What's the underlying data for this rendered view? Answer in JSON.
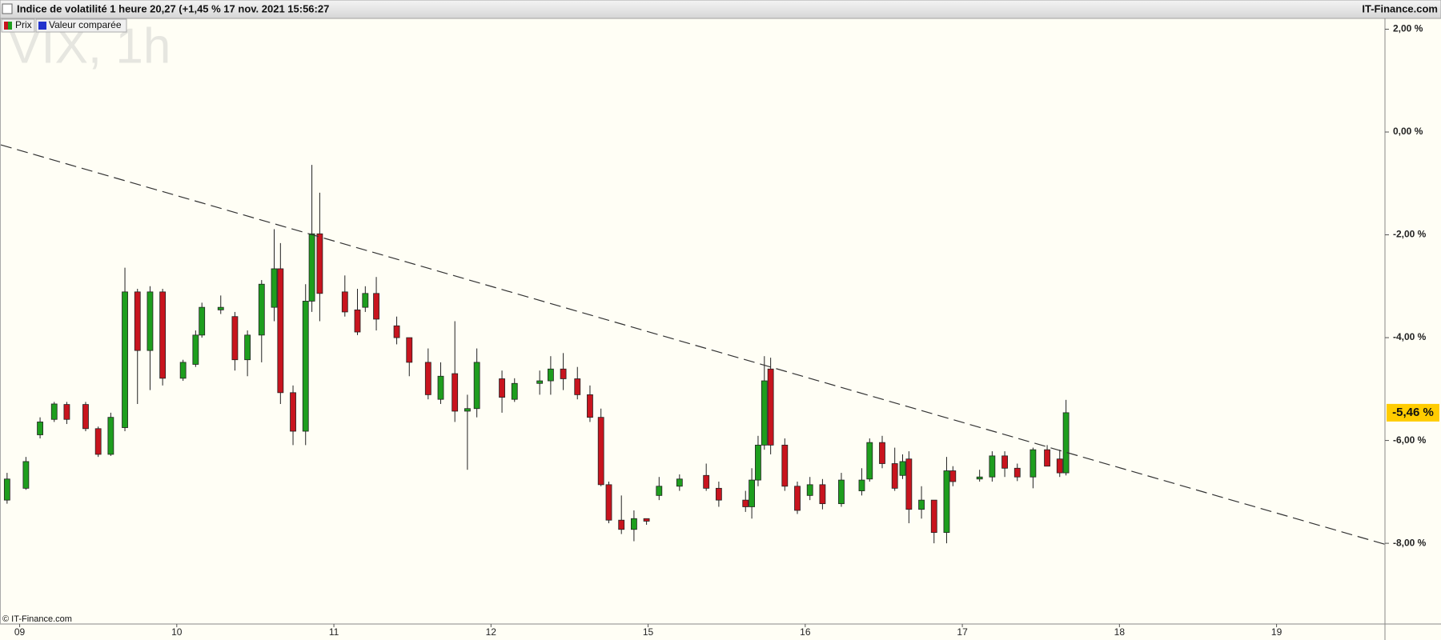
{
  "chart_data": {
    "type": "candlestick",
    "title": "Indice de volatilité 1 heure 20,27 (+1,45 % 17 nov. 2021 15:56:27",
    "source": "IT-Finance.com",
    "watermark": "VIX, 1h",
    "copyright": "© IT-Finance.com",
    "legend": [
      {
        "name": "Prix"
      },
      {
        "name": "Valeur comparée"
      }
    ],
    "colors": {
      "up": "#1e9e1e",
      "down": "#c8141e",
      "outline": "#222222",
      "trendline": "#333333",
      "badge": "#ffcc00"
    },
    "xlim": [
      -0.12,
      8.69
    ],
    "ylim": [
      -9.57,
      2.21
    ],
    "xticks": [
      {
        "value": 0,
        "label": "09"
      },
      {
        "value": 1,
        "label": "10"
      },
      {
        "value": 2,
        "label": "11"
      },
      {
        "value": 3,
        "label": "12"
      },
      {
        "value": 4,
        "label": "15"
      },
      {
        "value": 5,
        "label": "16"
      },
      {
        "value": 6,
        "label": "17"
      },
      {
        "value": 7,
        "label": "18"
      },
      {
        "value": 8,
        "label": "19"
      }
    ],
    "yticks": [
      {
        "value": 2,
        "label": "2,00 %"
      },
      {
        "value": 0,
        "label": "0,00 %"
      },
      {
        "value": -2,
        "label": "-2,00 %"
      },
      {
        "value": -4,
        "label": "-4,00 %"
      },
      {
        "value": -6,
        "label": "-6,00 %"
      },
      {
        "value": -8,
        "label": "-8,00 %"
      }
    ],
    "last_price": {
      "value": -5.46,
      "label": "-5,46 %"
    },
    "trendline": {
      "x": [
        -0.12,
        8.69
      ],
      "y": [
        -0.25,
        -8.02
      ]
    },
    "x": [
      -0.08,
      0.04,
      0.13,
      0.22,
      0.3,
      0.42,
      0.5,
      0.58,
      0.67,
      0.75,
      0.83,
      0.91,
      1.04,
      1.12,
      1.16,
      1.28,
      1.37,
      1.45,
      1.54,
      1.62,
      1.66,
      1.74,
      1.82,
      1.86,
      1.91,
      2.07,
      2.15,
      2.2,
      2.27,
      2.4,
      2.48,
      2.6,
      2.68,
      2.77,
      2.85,
      2.91,
      3.07,
      3.15,
      3.31,
      3.38,
      3.46,
      3.55,
      3.63,
      3.7,
      3.75,
      3.83,
      3.91,
      3.99,
      4.07,
      4.2,
      4.37,
      4.45,
      4.62,
      4.66,
      4.7,
      4.74,
      4.78,
      4.87,
      4.95,
      5.03,
      5.11,
      5.23,
      5.36,
      5.41,
      5.49,
      5.57,
      5.62,
      5.66,
      5.74,
      5.82,
      5.9,
      5.94,
      6.11,
      6.19,
      6.27,
      6.35,
      6.45,
      6.54,
      6.62,
      6.66
    ],
    "open": [
      -7.16,
      -6.93,
      -5.89,
      -5.59,
      -5.3,
      -5.3,
      -5.77,
      -6.27,
      -5.75,
      -3.11,
      -4.25,
      -3.11,
      -4.79,
      -4.52,
      -3.95,
      -3.46,
      -3.59,
      -4.43,
      -3.95,
      -3.41,
      -2.66,
      -5.07,
      -5.82,
      -3.29,
      -1.98,
      -3.11,
      -3.46,
      -3.41,
      -3.14,
      -3.77,
      -4.0,
      -4.48,
      -5.2,
      -4.7,
      -5.43,
      -5.38,
      -4.8,
      -5.2,
      -4.89,
      -4.84,
      -4.61,
      -4.8,
      -5.11,
      -5.55,
      -6.86,
      -7.55,
      -7.73,
      -7.52,
      -7.07,
      -6.89,
      -6.68,
      -6.93,
      -7.16,
      -7.29,
      -6.77,
      -6.09,
      -4.61,
      -6.09,
      -6.89,
      -7.07,
      -6.86,
      -7.23,
      -6.98,
      -6.75,
      -6.04,
      -6.45,
      -6.68,
      -6.36,
      -7.34,
      -7.16,
      -7.79,
      -6.59,
      -6.75,
      -6.71,
      -6.3,
      -6.54,
      -6.71,
      -6.18,
      -6.36,
      -6.63
    ],
    "high": [
      -6.63,
      -6.32,
      -5.55,
      -5.25,
      -5.25,
      -5.25,
      -5.73,
      -5.46,
      -2.64,
      -3.05,
      -3.0,
      -3.05,
      -4.43,
      -3.86,
      -3.32,
      -3.18,
      -3.5,
      -3.86,
      -2.88,
      -1.89,
      -2.16,
      -4.93,
      -2.96,
      -0.64,
      -1.18,
      -2.79,
      -3.05,
      -3.0,
      -2.82,
      -3.59,
      -4.0,
      -4.21,
      -4.48,
      -3.68,
      -5.11,
      -4.21,
      -4.64,
      -4.79,
      -4.64,
      -4.36,
      -4.3,
      -4.57,
      -4.93,
      -5.38,
      -6.8,
      -7.07,
      -7.36,
      -7.52,
      -6.71,
      -6.66,
      -6.45,
      -6.8,
      -6.98,
      -6.54,
      -5.91,
      -4.36,
      -4.39,
      -5.96,
      -6.8,
      -6.71,
      -6.75,
      -6.63,
      -6.54,
      -5.96,
      -5.91,
      -6.14,
      -6.27,
      -6.21,
      -6.89,
      -7.21,
      -6.32,
      -6.5,
      -6.57,
      -6.21,
      -6.21,
      -6.45,
      -6.14,
      -6.09,
      -6.18,
      -5.21
    ],
    "low": [
      -7.23,
      -6.96,
      -5.96,
      -5.64,
      -5.68,
      -5.82,
      -6.32,
      -6.3,
      -5.82,
      -5.29,
      -5.02,
      -4.93,
      -4.84,
      -4.57,
      -4.0,
      -3.54,
      -4.64,
      -4.75,
      -4.48,
      -3.68,
      -5.29,
      -6.09,
      -6.09,
      -3.5,
      -3.68,
      -3.59,
      -3.95,
      -3.5,
      -3.86,
      -4.13,
      -4.75,
      -5.2,
      -5.29,
      -5.64,
      -6.57,
      -5.55,
      -5.46,
      -5.25,
      -5.11,
      -5.11,
      -5.02,
      -5.2,
      -5.64,
      -6.89,
      -7.61,
      -7.82,
      -7.96,
      -7.64,
      -7.16,
      -6.98,
      -6.98,
      -7.29,
      -7.39,
      -7.52,
      -6.89,
      -6.18,
      -6.27,
      -6.98,
      -7.43,
      -7.16,
      -7.34,
      -7.29,
      -7.07,
      -6.8,
      -6.54,
      -6.98,
      -6.75,
      -7.61,
      -7.52,
      -8.0,
      -8.0,
      -6.89,
      -6.8,
      -6.8,
      -6.71,
      -6.79,
      -6.93,
      -6.45,
      -6.71,
      -6.68
    ],
    "close": [
      -6.75,
      -6.41,
      -5.64,
      -5.29,
      -5.59,
      -5.77,
      -6.27,
      -5.55,
      -3.11,
      -4.25,
      -3.11,
      -4.79,
      -4.48,
      -3.95,
      -3.41,
      -3.41,
      -4.43,
      -3.95,
      -2.96,
      -2.66,
      -5.07,
      -5.82,
      -3.29,
      -1.98,
      -3.14,
      -3.5,
      -3.89,
      -3.14,
      -3.64,
      -4.0,
      -4.48,
      -5.11,
      -4.75,
      -5.43,
      -5.38,
      -4.48,
      -5.16,
      -4.89,
      -4.84,
      -4.61,
      -4.8,
      -5.11,
      -5.55,
      -6.86,
      -7.55,
      -7.73,
      -7.52,
      -7.57,
      -6.89,
      -6.75,
      -6.93,
      -7.16,
      -7.29,
      -6.77,
      -6.09,
      -4.84,
      -6.09,
      -6.89,
      -7.36,
      -6.86,
      -7.23,
      -6.77,
      -6.77,
      -6.04,
      -6.45,
      -6.93,
      -6.41,
      -7.34,
      -7.16,
      -7.79,
      -6.59,
      -6.8,
      -6.71,
      -6.3,
      -6.54,
      -6.71,
      -6.18,
      -6.5,
      -6.63,
      -5.46
    ]
  }
}
